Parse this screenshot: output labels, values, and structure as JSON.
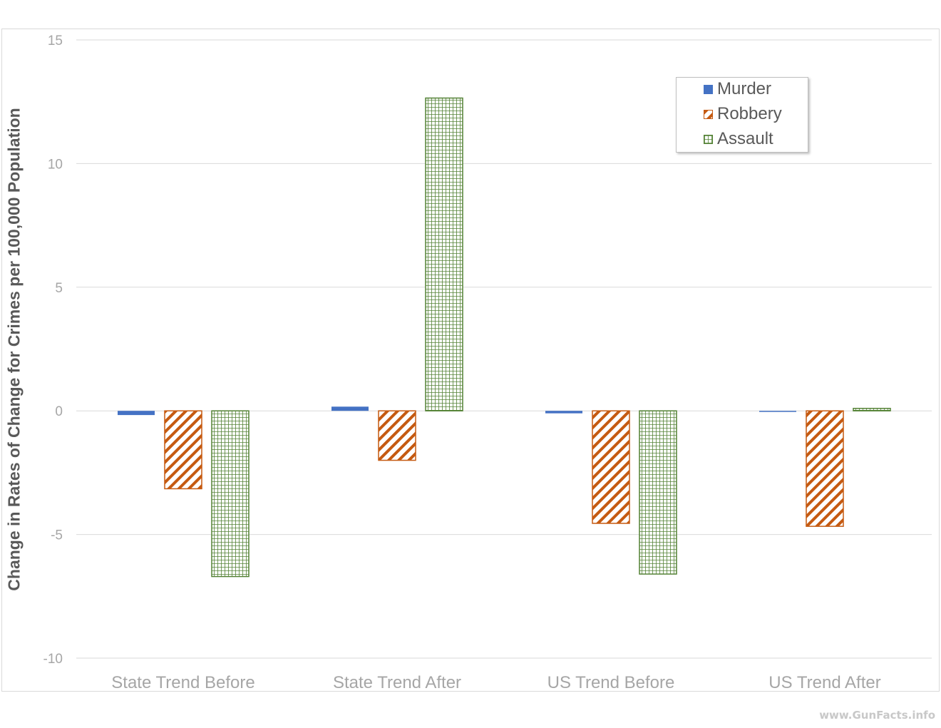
{
  "chart_data": {
    "type": "bar",
    "title": "",
    "xlabel": "",
    "ylabel": "Change in Rates of Change for Crimes per 100,000 Population",
    "ylim": [
      -10,
      15
    ],
    "yticks": [
      15,
      10,
      5,
      0,
      -5,
      -10
    ],
    "grid": true,
    "legend_position": "upper right (inside)",
    "categories": [
      "State Trend Before",
      "State Trend After",
      "US Trend Before",
      "US Trend After"
    ],
    "series": [
      {
        "name": "Murder",
        "color": "#4472c4",
        "pattern": "solid",
        "values": [
          -0.17,
          0.17,
          -0.1,
          -0.02
        ]
      },
      {
        "name": "Robbery",
        "color": "#c55a11",
        "pattern": "wide-downward-diagonal",
        "values": [
          -3.15,
          -2.0,
          -4.55,
          -4.67
        ]
      },
      {
        "name": "Assault",
        "color": "#548235",
        "pattern": "small-grid",
        "values": [
          -6.7,
          12.65,
          -6.6,
          0.1
        ]
      }
    ]
  },
  "legend": {
    "items": [
      "Murder",
      "Robbery",
      "Assault"
    ]
  },
  "axis": {
    "ylabel": "Change in Rates of Change for Crimes per 100,000 Population",
    "yticks": [
      "15",
      "10",
      "5",
      "0",
      "-5",
      "-10"
    ],
    "xticks": [
      "State Trend Before",
      "State Trend After",
      "US Trend Before",
      "US Trend After"
    ]
  },
  "watermark": "www.GunFacts.info",
  "colors": {
    "murder": "#4472c4",
    "robbery": "#c55a11",
    "assault": "#548235",
    "gridline": "#d9d9d9",
    "tick_text": "#a6a6a6"
  }
}
